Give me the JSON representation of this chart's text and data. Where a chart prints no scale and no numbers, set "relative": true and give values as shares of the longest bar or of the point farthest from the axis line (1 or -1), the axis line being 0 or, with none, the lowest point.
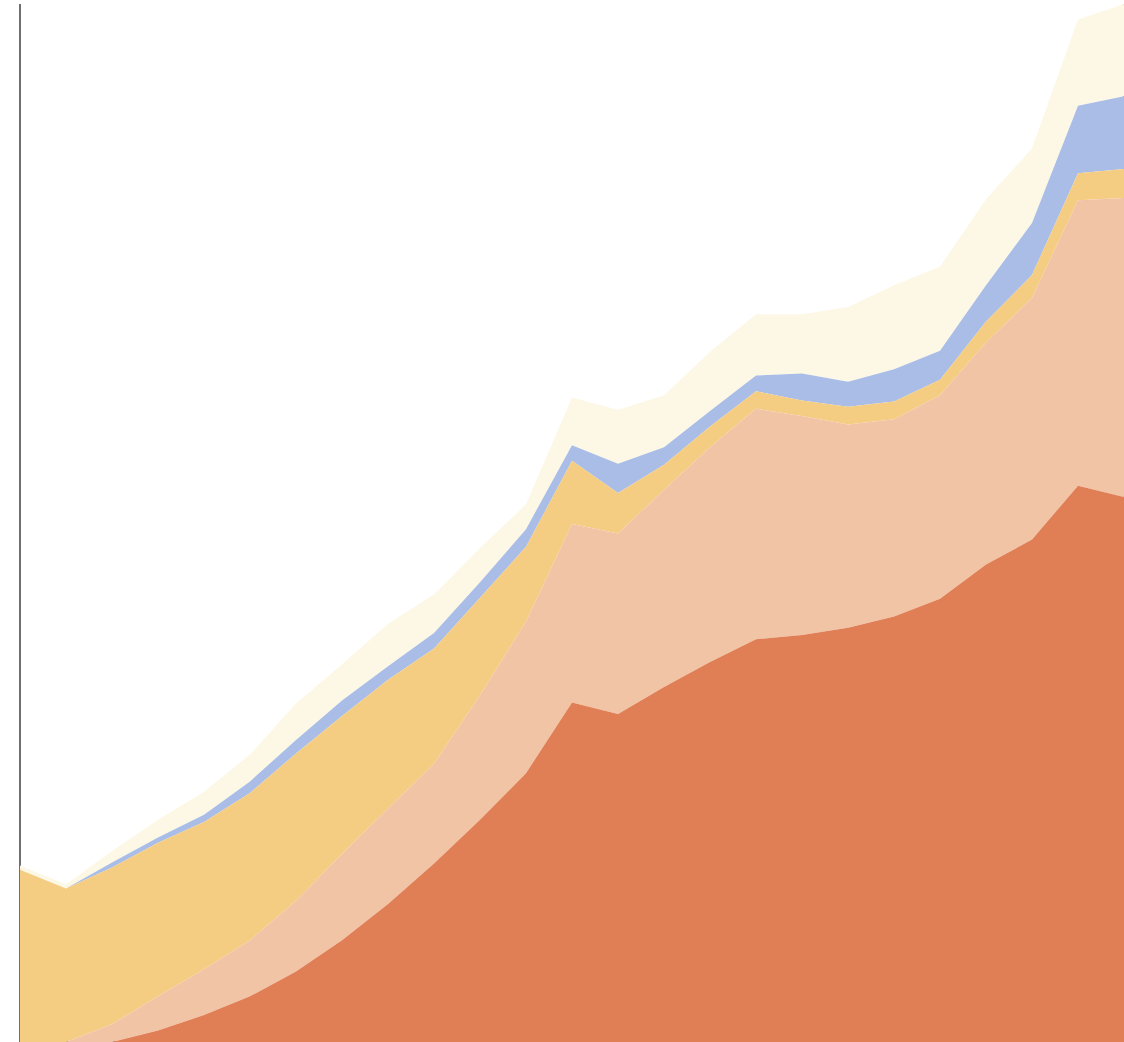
{
  "chart_data": {
    "type": "area",
    "relative": true,
    "stacked": true,
    "categories": [
      null,
      null,
      null,
      null,
      null,
      null,
      null,
      null,
      null,
      null,
      null,
      null,
      null,
      null,
      null,
      null,
      null,
      null,
      null,
      null,
      null,
      null,
      null,
      null,
      null
    ],
    "series": [
      {
        "color": "#e07f55",
        "values": [
          0,
          0,
          0,
          0.011,
          0.026,
          0.044,
          0.068,
          0.098,
          0.133,
          0.172,
          0.214,
          0.259,
          0.327,
          0.316,
          0.342,
          0.366,
          0.388,
          0.392,
          0.399,
          0.41,
          0.427,
          0.46,
          0.484,
          0.536,
          0.525
        ]
      },
      {
        "color": "#f2c4a6",
        "values": [
          0,
          0,
          0.017,
          0.033,
          0.044,
          0.054,
          0.068,
          0.083,
          0.092,
          0.096,
          0.12,
          0.146,
          0.172,
          0.174,
          0.19,
          0.207,
          0.222,
          0.211,
          0.196,
          0.19,
          0.196,
          0.214,
          0.233,
          0.275,
          0.288
        ]
      },
      {
        "color": "#f4cd82",
        "values": [
          0.166,
          0.148,
          0.151,
          0.148,
          0.142,
          0.142,
          0.142,
          0.133,
          0.124,
          0.111,
          0.094,
          0.072,
          0.061,
          0.039,
          0.024,
          0.02,
          0.017,
          0.015,
          0.017,
          0.017,
          0.015,
          0.02,
          0.022,
          0.026,
          0.028
        ]
      },
      {
        "color": "#a9bde6",
        "values": [
          0,
          0,
          0.005,
          0.005,
          0.007,
          0.011,
          0.013,
          0.015,
          0.013,
          0.015,
          0.015,
          0.017,
          0.015,
          0.028,
          0.017,
          0.015,
          0.015,
          0.026,
          0.024,
          0.031,
          0.028,
          0.035,
          0.05,
          0.065,
          0.07
        ]
      },
      {
        "color": "#fdf8e6",
        "values": [
          0.004,
          0.004,
          0.011,
          0.017,
          0.022,
          0.026,
          0.035,
          0.035,
          0.041,
          0.037,
          0.033,
          0.024,
          0.046,
          0.052,
          0.05,
          0.057,
          0.059,
          0.057,
          0.072,
          0.081,
          0.081,
          0.083,
          0.072,
          0.083,
          0.089
        ]
      }
    ]
  }
}
